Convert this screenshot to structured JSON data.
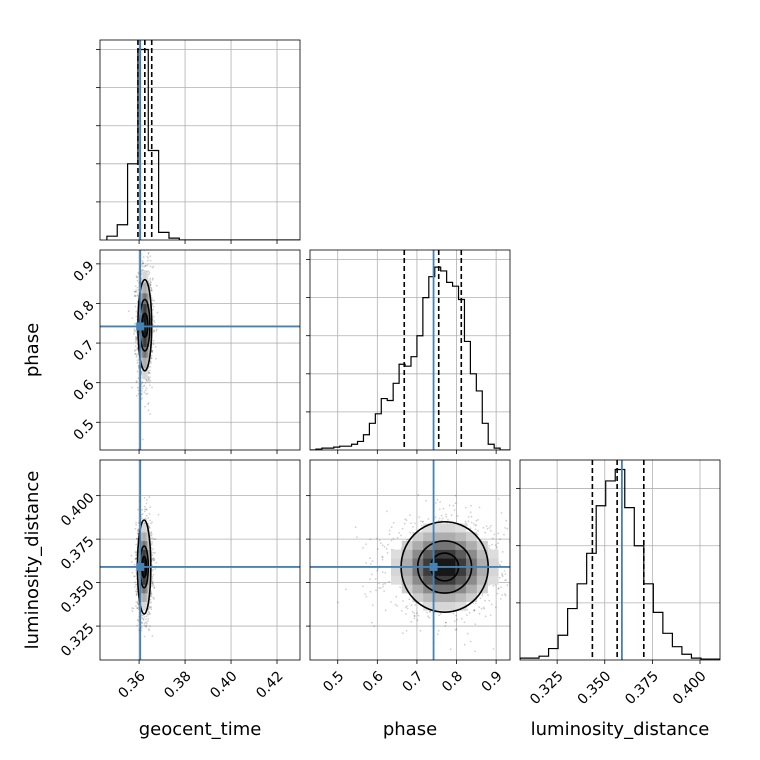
{
  "chart_data": {
    "type": "corner",
    "parameters": [
      "geocent_time",
      "phase",
      "luminosity_distance"
    ],
    "truths": {
      "geocent_time": 0.3605,
      "phase": 0.742,
      "luminosity_distance": 0.359
    },
    "truth_color": "#4682b4",
    "grid": true,
    "panels": [
      {
        "id": "hist-geocent_time",
        "kind": "histogram",
        "row": 0,
        "col": 0,
        "param": "geocent_time",
        "xlim": [
          0.343,
          0.43
        ],
        "ylim": [
          0,
          1.05
        ],
        "yticks_hidden": true,
        "yticks": [
          0.2,
          0.4,
          0.6,
          0.8,
          1.0
        ],
        "xticks": [
          0.36,
          0.38,
          0.4,
          0.42
        ],
        "show_xticklabels": false,
        "bins": [
          0.346,
          0.3505,
          0.355,
          0.3595,
          0.364,
          0.3685,
          0.373,
          0.3775,
          0.382,
          0.43
        ],
        "counts": [
          0.02,
          0.08,
          0.4,
          1.0,
          0.47,
          0.04,
          0.01,
          0.0,
          0.0
        ],
        "quantiles": [
          0.3595,
          0.3625,
          0.3655
        ]
      },
      {
        "id": "hist-phase",
        "kind": "histogram",
        "row": 1,
        "col": 1,
        "param": "phase",
        "xlim": [
          0.43,
          0.935
        ],
        "ylim": [
          0,
          1.05
        ],
        "yticks_hidden": true,
        "yticks": [
          0.2,
          0.4,
          0.6,
          0.8,
          1.0
        ],
        "xticks": [
          0.5,
          0.6,
          0.7,
          0.8,
          0.9
        ],
        "show_xticklabels": false,
        "bins": [
          0.43,
          0.445,
          0.46,
          0.475,
          0.49,
          0.505,
          0.52,
          0.535,
          0.55,
          0.565,
          0.58,
          0.595,
          0.61,
          0.625,
          0.64,
          0.655,
          0.67,
          0.685,
          0.7,
          0.715,
          0.73,
          0.745,
          0.76,
          0.775,
          0.79,
          0.805,
          0.82,
          0.835,
          0.85,
          0.865,
          0.88,
          0.895,
          0.91,
          0.935
        ],
        "counts": [
          0.0,
          0.005,
          0.01,
          0.01,
          0.015,
          0.02,
          0.02,
          0.03,
          0.045,
          0.08,
          0.14,
          0.19,
          0.27,
          0.26,
          0.35,
          0.45,
          0.44,
          0.49,
          0.6,
          0.8,
          0.91,
          0.96,
          0.94,
          0.88,
          0.86,
          0.79,
          0.57,
          0.4,
          0.31,
          0.14,
          0.03,
          0.01,
          0.0
        ],
        "quantiles": [
          0.668,
          0.755,
          0.812
        ]
      },
      {
        "id": "hist-luminosity_distance",
        "kind": "histogram",
        "row": 2,
        "col": 2,
        "param": "luminosity_distance",
        "xlim": [
          0.3055,
          0.4105
        ],
        "ylim": [
          0,
          1.05
        ],
        "yticks_hidden": true,
        "yticks": [
          0.3,
          0.6,
          0.9
        ],
        "xticks": [
          0.325,
          0.35,
          0.375,
          0.4
        ],
        "xticklabels": [
          "0.325",
          "0.350",
          "0.375",
          "0.400"
        ],
        "bins": [
          0.3055,
          0.3155,
          0.3205,
          0.3255,
          0.3305,
          0.3355,
          0.3405,
          0.3455,
          0.3505,
          0.3555,
          0.3605,
          0.3655,
          0.3705,
          0.3755,
          0.3805,
          0.3855,
          0.3905,
          0.3955,
          0.4005,
          0.4105
        ],
        "counts": [
          0.01,
          0.02,
          0.06,
          0.13,
          0.27,
          0.4,
          0.56,
          0.81,
          0.94,
          1.0,
          0.8,
          0.6,
          0.4,
          0.25,
          0.14,
          0.07,
          0.03,
          0.01,
          0.005
        ],
        "quantiles": [
          0.3435,
          0.3565,
          0.3705
        ]
      },
      {
        "id": "density-geocent_time-phase",
        "kind": "density2d",
        "row": 1,
        "col": 0,
        "x": "geocent_time",
        "y": "phase",
        "xlim": [
          0.343,
          0.43
        ],
        "ylim": [
          0.43,
          0.935
        ],
        "xticks": [
          0.36,
          0.38,
          0.4,
          0.42
        ],
        "show_xticklabels": false,
        "yticks": [
          0.5,
          0.6,
          0.7,
          0.8,
          0.9
        ],
        "yticklabels": [
          "0.5",
          "0.6",
          "0.7",
          "0.8",
          "0.9"
        ],
        "center": [
          0.3625,
          0.745
        ],
        "spread": [
          0.0015,
          0.065
        ],
        "contour_halfwidths": [
          [
            0.0013,
            0.03
          ],
          [
            0.0022,
            0.065
          ],
          [
            0.003,
            0.115
          ]
        ]
      },
      {
        "id": "density-geocent_time-luminosity_distance",
        "kind": "density2d",
        "row": 2,
        "col": 0,
        "x": "geocent_time",
        "y": "luminosity_distance",
        "xlim": [
          0.343,
          0.43
        ],
        "ylim": [
          0.3055,
          0.4205
        ],
        "xticks": [
          0.36,
          0.38,
          0.4,
          0.42
        ],
        "xticklabels": [
          "0.36",
          "0.38",
          "0.40",
          "0.42"
        ],
        "yticks": [
          0.325,
          0.35,
          0.375,
          0.4
        ],
        "yticklabels": [
          "0.325",
          "0.350",
          "0.375",
          "0.400"
        ],
        "center": [
          0.3622,
          0.359
        ],
        "spread": [
          0.0015,
          0.012
        ],
        "contour_halfwidths": [
          [
            0.001,
            0.006
          ],
          [
            0.0018,
            0.012
          ],
          [
            0.0029,
            0.027
          ]
        ]
      },
      {
        "id": "density-phase-luminosity_distance",
        "kind": "density2d",
        "row": 2,
        "col": 1,
        "x": "phase",
        "y": "luminosity_distance",
        "xlim": [
          0.43,
          0.935
        ],
        "ylim": [
          0.3055,
          0.4205
        ],
        "xticks": [
          0.5,
          0.6,
          0.7,
          0.8,
          0.9
        ],
        "xticklabels": [
          "0.5",
          "0.6",
          "0.7",
          "0.8",
          "0.9"
        ],
        "yticks": [
          0.325,
          0.35,
          0.375,
          0.4
        ],
        "show_yticklabels": false,
        "center": [
          0.77,
          0.359
        ],
        "spread": [
          0.065,
          0.012
        ],
        "contour_halfwidths": [
          [
            0.035,
            0.008
          ],
          [
            0.068,
            0.015
          ],
          [
            0.11,
            0.026
          ]
        ]
      }
    ],
    "axis_labels": {
      "x": [
        "geocent_time",
        "phase",
        "luminosity_distance"
      ],
      "y": [
        "",
        "phase",
        "luminosity_distance"
      ]
    }
  }
}
